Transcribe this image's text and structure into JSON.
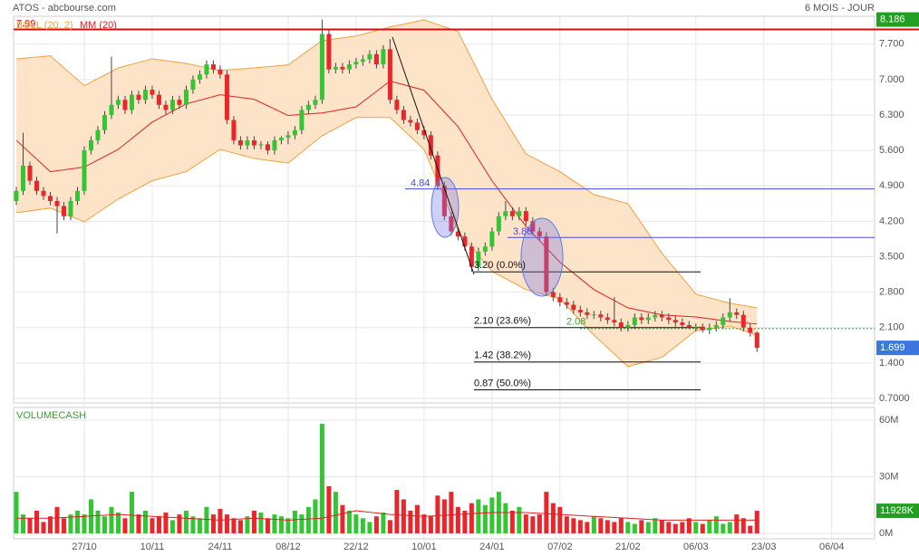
{
  "header": {
    "title": "ATOS - abcbourse.com",
    "period": "6 MOIS - JOUR"
  },
  "chart_data": {
    "type": "candlestick",
    "up_color": "#33c533",
    "down_color": "#e8262b",
    "grid": true,
    "xlim": [
      -0.4,
      126.3
    ],
    "xticks": [
      {
        "value": 10,
        "label": "27/10"
      },
      {
        "value": 20,
        "label": "10/11"
      },
      {
        "value": 30,
        "label": "24/11"
      },
      {
        "value": 40,
        "label": "08/12"
      },
      {
        "value": 50,
        "label": "22/12"
      },
      {
        "value": 60,
        "label": "10/01"
      },
      {
        "value": 70,
        "label": "24/01"
      },
      {
        "value": 80,
        "label": "07/02"
      },
      {
        "value": 90,
        "label": "21/02"
      },
      {
        "value": 100,
        "label": "06/03"
      },
      {
        "value": 110,
        "label": "23/03"
      },
      {
        "value": 120,
        "label": "06/04"
      }
    ],
    "ylim": [
      0.61,
      8.25
    ],
    "yticks": [
      {
        "value": 7.7,
        "label": "7.700"
      },
      {
        "value": 7,
        "label": "7.000"
      },
      {
        "value": 6.3,
        "label": "6.300"
      },
      {
        "value": 5.6,
        "label": "5.600"
      },
      {
        "value": 4.9,
        "label": "4.900"
      },
      {
        "value": 4.2,
        "label": "4.200"
      },
      {
        "value": 3.5,
        "label": "3.500"
      },
      {
        "value": 2.8,
        "label": "2.800"
      },
      {
        "value": 2.1,
        "label": "2.100"
      },
      {
        "value": 1.4,
        "label": "1.400"
      },
      {
        "value": 0.7,
        "label": "0.7000"
      }
    ],
    "candles": [
      [
        4.6,
        4.88,
        4.52,
        4.8
      ],
      [
        4.8,
        5.95,
        4.72,
        5.3
      ],
      [
        5.3,
        5.38,
        4.92,
        5.0
      ],
      [
        5.0,
        5.08,
        4.72,
        4.8
      ],
      [
        4.8,
        4.88,
        4.62,
        4.7
      ],
      [
        4.7,
        4.78,
        4.52,
        4.6
      ],
      [
        4.6,
        4.68,
        3.96,
        4.5
      ],
      [
        4.5,
        4.58,
        4.22,
        4.3
      ],
      [
        4.3,
        4.68,
        4.22,
        4.6
      ],
      [
        4.6,
        4.88,
        4.52,
        4.8
      ],
      [
        4.8,
        5.68,
        4.72,
        5.6
      ],
      [
        5.6,
        5.88,
        5.52,
        5.8
      ],
      [
        5.8,
        6.08,
        5.72,
        6.0
      ],
      [
        6.0,
        6.38,
        5.92,
        6.3
      ],
      [
        6.3,
        7.45,
        6.22,
        6.5
      ],
      [
        6.5,
        6.68,
        6.42,
        6.6
      ],
      [
        6.6,
        6.68,
        6.32,
        6.4
      ],
      [
        6.4,
        6.78,
        6.32,
        6.7
      ],
      [
        6.7,
        6.78,
        6.52,
        6.6
      ],
      [
        6.6,
        6.88,
        6.52,
        6.8
      ],
      [
        6.8,
        6.88,
        6.62,
        6.7
      ],
      [
        6.7,
        6.78,
        6.42,
        6.5
      ],
      [
        6.5,
        6.58,
        6.32,
        6.4
      ],
      [
        6.4,
        6.68,
        6.32,
        6.6
      ],
      [
        6.6,
        6.68,
        6.42,
        6.5
      ],
      [
        6.5,
        6.88,
        6.42,
        6.8
      ],
      [
        6.8,
        7.08,
        6.72,
        7.0
      ],
      [
        7.0,
        7.18,
        6.92,
        7.1
      ],
      [
        7.1,
        7.38,
        7.02,
        7.3
      ],
      [
        7.3,
        7.38,
        7.12,
        7.2
      ],
      [
        7.2,
        7.28,
        7.02,
        7.1
      ],
      [
        7.1,
        7.18,
        6.12,
        6.2
      ],
      [
        6.2,
        6.28,
        5.72,
        5.8
      ],
      [
        5.8,
        5.88,
        5.62,
        5.7
      ],
      [
        5.7,
        5.88,
        5.62,
        5.8
      ],
      [
        5.8,
        5.88,
        5.62,
        5.7
      ],
      [
        5.7,
        5.78,
        5.62,
        5.72
      ],
      [
        5.72,
        5.78,
        5.52,
        5.6
      ],
      [
        5.6,
        5.88,
        5.52,
        5.8
      ],
      [
        5.8,
        5.88,
        5.72,
        5.85
      ],
      [
        5.85,
        5.98,
        5.72,
        5.9
      ],
      [
        5.9,
        6.08,
        5.82,
        6.0
      ],
      [
        6.0,
        6.48,
        5.92,
        6.4
      ],
      [
        6.4,
        6.58,
        6.32,
        6.5
      ],
      [
        6.5,
        6.68,
        6.42,
        6.6
      ],
      [
        6.6,
        8.186,
        6.52,
        7.9
      ],
      [
        7.9,
        7.98,
        7.12,
        7.2
      ],
      [
        7.2,
        7.33,
        7.12,
        7.25
      ],
      [
        7.25,
        7.33,
        7.12,
        7.2
      ],
      [
        7.2,
        7.38,
        7.12,
        7.3
      ],
      [
        7.3,
        7.43,
        7.22,
        7.35
      ],
      [
        7.35,
        7.48,
        7.27,
        7.4
      ],
      [
        7.4,
        7.58,
        7.32,
        7.5
      ],
      [
        7.5,
        7.58,
        7.22,
        7.3
      ],
      [
        7.3,
        7.68,
        7.22,
        7.6
      ],
      [
        7.6,
        7.8,
        6.52,
        6.6
      ],
      [
        6.6,
        6.68,
        6.32,
        6.4
      ],
      [
        6.4,
        6.48,
        6.12,
        6.2
      ],
      [
        6.2,
        6.28,
        6.07,
        6.15
      ],
      [
        6.15,
        6.23,
        5.92,
        6.0
      ],
      [
        6.0,
        6.08,
        5.82,
        5.9
      ],
      [
        5.9,
        5.98,
        5.42,
        5.5
      ],
      [
        5.5,
        5.58,
        4.82,
        4.9
      ],
      [
        4.9,
        4.98,
        4.22,
        4.3
      ],
      [
        4.3,
        4.38,
        3.92,
        4.0
      ],
      [
        4.0,
        4.08,
        3.82,
        3.9
      ],
      [
        3.9,
        3.98,
        3.62,
        3.7
      ],
      [
        3.7,
        3.78,
        3.2,
        3.3
      ],
      [
        3.3,
        3.68,
        3.22,
        3.6
      ],
      [
        3.6,
        3.78,
        3.52,
        3.7
      ],
      [
        3.7,
        4.08,
        3.62,
        4.0
      ],
      [
        4.0,
        4.38,
        3.92,
        4.3
      ],
      [
        4.3,
        4.6,
        4.22,
        4.4
      ],
      [
        4.4,
        4.48,
        4.22,
        4.3
      ],
      [
        4.3,
        4.48,
        4.22,
        4.4
      ],
      [
        4.4,
        4.48,
        4.12,
        4.2
      ],
      [
        4.2,
        4.28,
        3.92,
        4.0
      ],
      [
        4.0,
        4.08,
        3.82,
        3.9
      ],
      [
        3.9,
        3.98,
        2.72,
        2.8
      ],
      [
        2.8,
        2.88,
        2.62,
        2.7
      ],
      [
        2.7,
        2.78,
        2.52,
        2.6
      ],
      [
        2.6,
        2.68,
        2.47,
        2.55
      ],
      [
        2.55,
        2.63,
        2.37,
        2.45
      ],
      [
        2.45,
        2.53,
        2.32,
        2.4
      ],
      [
        2.4,
        2.48,
        2.27,
        2.35
      ],
      [
        2.35,
        2.43,
        2.27,
        2.36
      ],
      [
        2.36,
        2.43,
        2.22,
        2.3
      ],
      [
        2.3,
        2.38,
        2.17,
        2.25
      ],
      [
        2.25,
        2.7,
        2.12,
        2.2
      ],
      [
        2.2,
        2.28,
        2.02,
        2.1
      ],
      [
        2.1,
        2.23,
        2.02,
        2.15
      ],
      [
        2.15,
        2.38,
        2.07,
        2.3
      ],
      [
        2.3,
        2.38,
        2.17,
        2.25
      ],
      [
        2.25,
        2.38,
        2.17,
        2.3
      ],
      [
        2.3,
        2.43,
        2.22,
        2.35
      ],
      [
        2.35,
        2.43,
        2.22,
        2.3
      ],
      [
        2.3,
        2.38,
        2.17,
        2.25
      ],
      [
        2.25,
        2.33,
        2.12,
        2.2
      ],
      [
        2.2,
        2.28,
        2.07,
        2.15
      ],
      [
        2.15,
        2.23,
        2.07,
        2.1
      ],
      [
        2.1,
        2.18,
        2.02,
        2.12
      ],
      [
        2.12,
        2.18,
        2.0,
        2.05
      ],
      [
        2.05,
        2.18,
        1.97,
        2.1
      ],
      [
        2.1,
        2.23,
        2.02,
        2.15
      ],
      [
        2.15,
        2.38,
        2.07,
        2.3
      ],
      [
        2.3,
        2.68,
        2.22,
        2.4
      ],
      [
        2.4,
        2.48,
        2.27,
        2.35
      ],
      [
        2.35,
        2.43,
        2.02,
        2.1
      ],
      [
        2.1,
        2.18,
        1.92,
        2.0
      ],
      [
        2.0,
        2.02,
        1.62,
        1.699
      ]
    ],
    "bollinger": {
      "name": "BOLL (20, 2)",
      "color": "#f0a040",
      "fill": "#fde3c8",
      "x": [
        0,
        5,
        10,
        15,
        20,
        25,
        30,
        35,
        40,
        45,
        50,
        55,
        60,
        65,
        70,
        75,
        80,
        85,
        90,
        95,
        100,
        105,
        109
      ],
      "upper": [
        7.41,
        7.47,
        6.88,
        7.23,
        7.41,
        7.32,
        7.18,
        7.23,
        7.29,
        7.77,
        7.86,
        8.04,
        8.18,
        7.95,
        6.61,
        5.53,
        5.18,
        4.73,
        4.55,
        3.57,
        2.76,
        2.58,
        2.49
      ],
      "lower": [
        4.37,
        4.46,
        4.19,
        4.64,
        5.0,
        5.18,
        5.62,
        5.44,
        5.35,
        5.89,
        6.25,
        6.25,
        5.62,
        4.01,
        3.21,
        2.85,
        2.67,
        1.95,
        1.33,
        1.51,
        2.04,
        2.13,
        1.95
      ]
    },
    "ma": {
      "name": "MM (20)",
      "color": "#e02020",
      "x": [
        0,
        5,
        10,
        15,
        20,
        25,
        30,
        35,
        40,
        45,
        50,
        55,
        60,
        65,
        70,
        75,
        80,
        85,
        90,
        95,
        100,
        105,
        109
      ],
      "values": [
        5.8,
        5.18,
        5.27,
        5.62,
        6.16,
        6.52,
        6.7,
        6.61,
        6.29,
        6.34,
        6.46,
        6.97,
        6.79,
        6.07,
        5.0,
        4.1,
        3.39,
        2.85,
        2.49,
        2.35,
        2.31,
        2.22,
        2.17
      ]
    },
    "resistance": 7.99,
    "levels": [
      4.84,
      3.88
    ],
    "support": 2.08,
    "fib": [
      {
        "value": 3.2,
        "label": "3.20  (0.0%)"
      },
      {
        "value": 2.1,
        "label": "2.10  (23.6%)"
      },
      {
        "value": 1.42,
        "label": "1.42  (38.2%)"
      },
      {
        "value": 0.87,
        "label": "0.87  (50.0%)"
      }
    ],
    "volume": {
      "title": "VOLUMECASH",
      "ylim": [
        -2.9,
        66.7
      ],
      "yticks": [
        {
          "value": 60,
          "label": "60M"
        },
        {
          "value": 30,
          "label": "30M"
        },
        {
          "value": 0,
          "label": "0M"
        }
      ],
      "values": [
        22,
        10,
        8,
        12,
        6,
        9,
        14,
        8,
        10,
        12,
        10,
        18,
        12,
        9,
        14,
        11,
        8,
        22,
        10,
        12,
        8,
        9,
        11,
        7,
        10,
        12,
        9,
        8,
        14,
        10,
        13,
        10,
        8,
        7,
        9,
        12,
        11,
        8,
        10,
        9,
        8,
        12,
        10,
        14,
        18,
        58,
        25,
        22,
        15,
        12,
        10,
        8,
        6,
        9,
        11,
        7,
        23,
        18,
        12,
        15,
        10,
        9,
        20,
        18,
        22,
        14,
        12,
        16,
        18,
        15,
        19,
        22,
        16,
        12,
        14,
        10,
        9,
        10,
        22,
        16,
        14,
        9,
        8,
        7,
        6,
        9,
        8,
        7,
        6,
        8,
        6,
        5,
        7,
        6,
        8,
        7,
        6,
        5,
        6,
        8,
        6,
        5,
        7,
        9,
        5,
        6,
        10,
        8,
        4,
        11.928
      ],
      "last_label": "11928K",
      "ma": {
        "x": [
          0,
          5,
          10,
          15,
          20,
          25,
          30,
          35,
          40,
          45,
          50,
          55,
          60,
          65,
          70,
          75,
          80,
          85,
          90,
          95,
          100,
          105,
          109
        ],
        "values": [
          8,
          8,
          9,
          10,
          9,
          8,
          7,
          8,
          7,
          8,
          12,
          10,
          9,
          10,
          11,
          11,
          10,
          9,
          8,
          7,
          7,
          7,
          7
        ]
      }
    }
  }
}
